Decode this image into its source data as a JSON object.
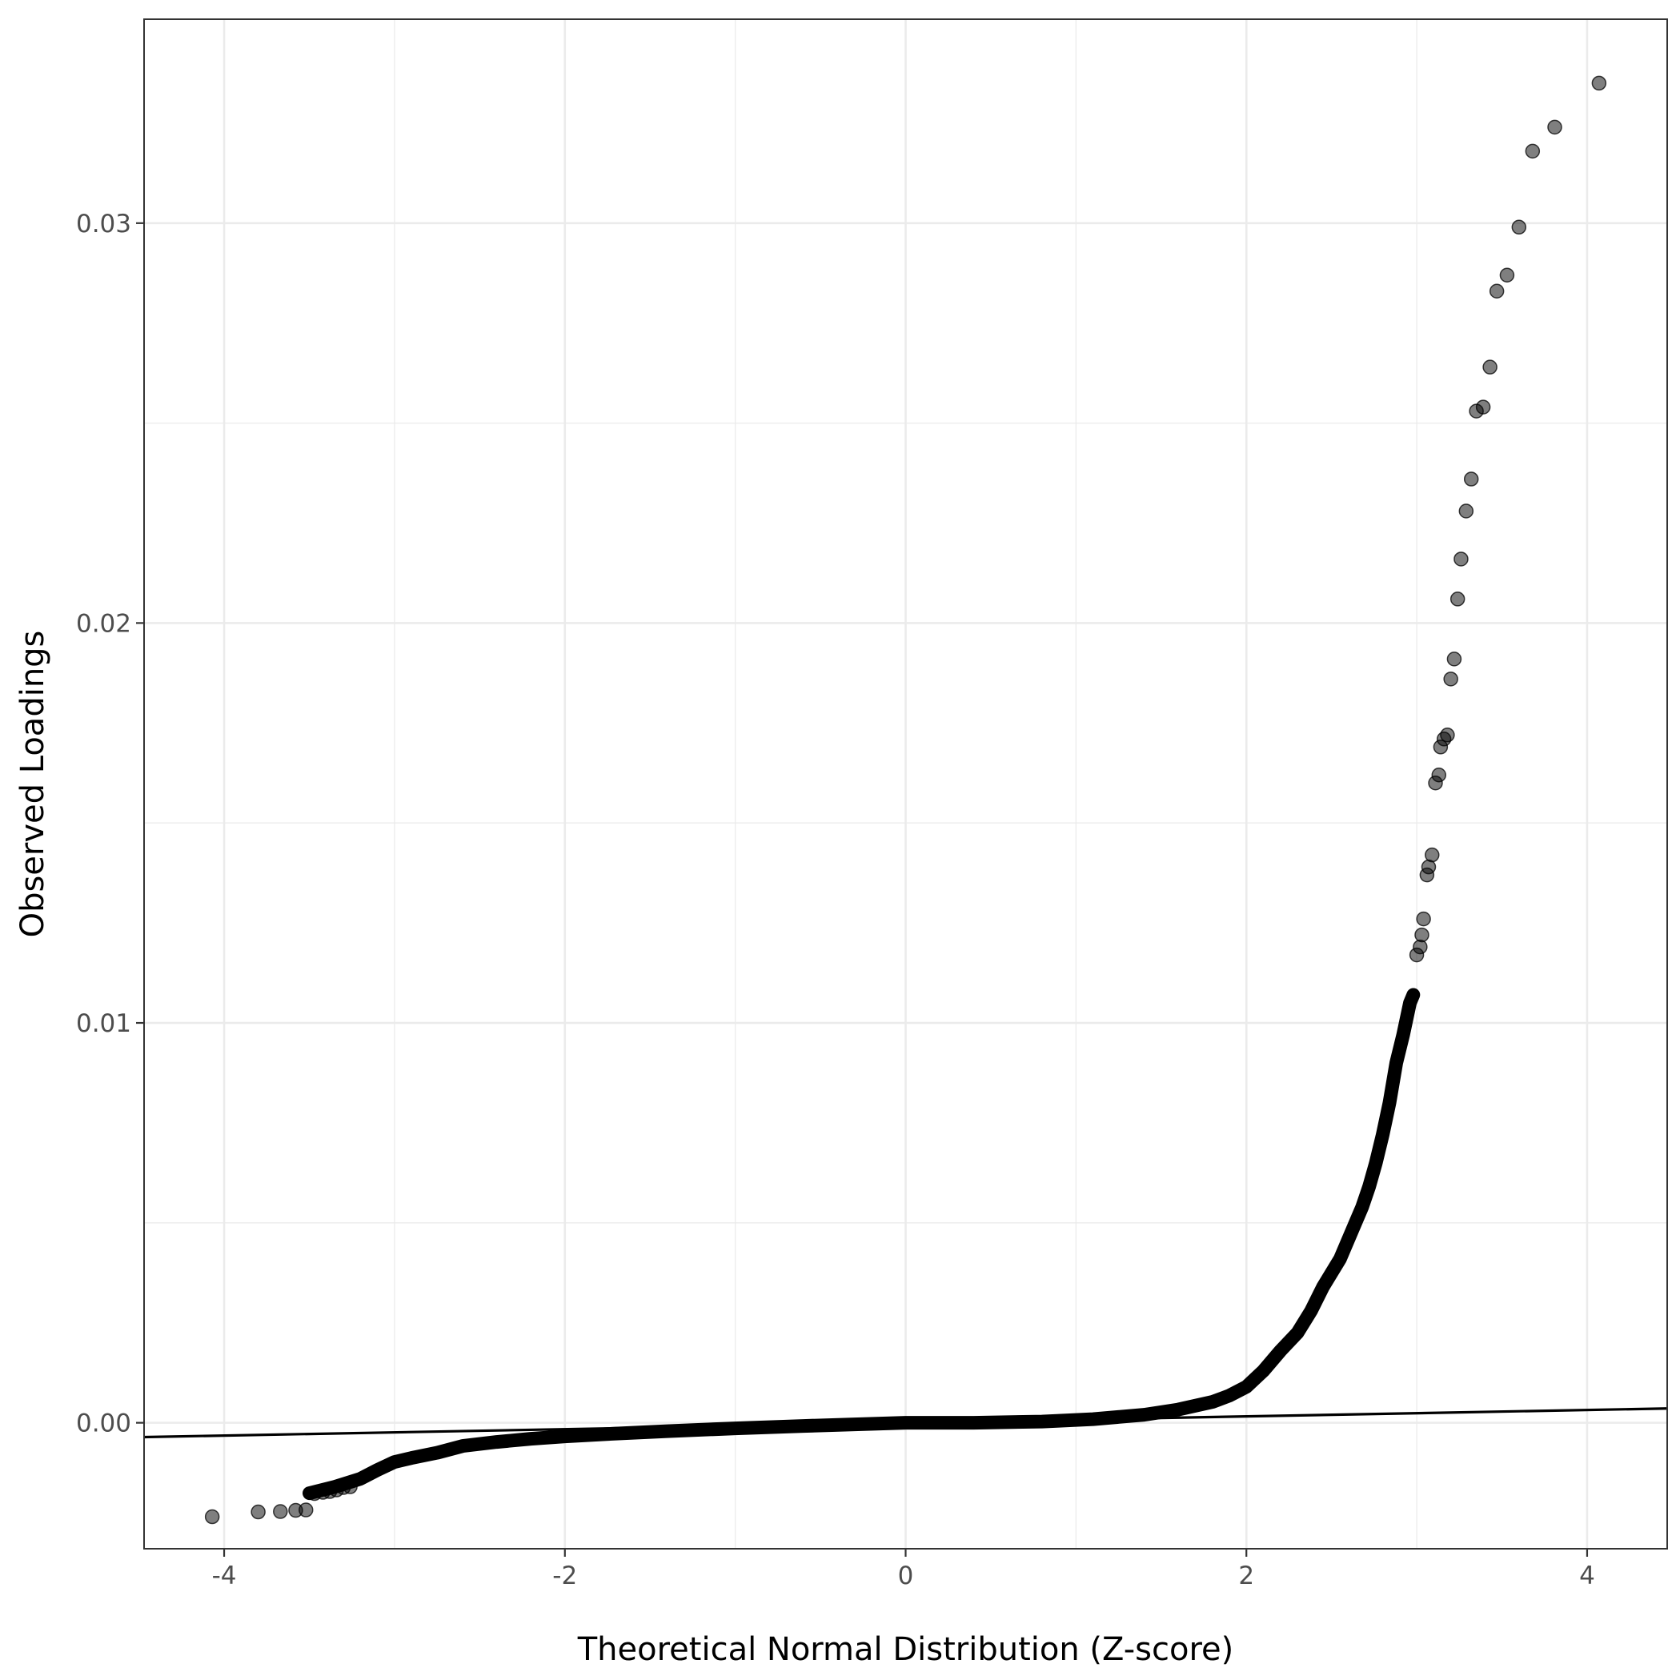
{
  "chart_data": {
    "type": "scatter",
    "title": "",
    "xlabel": "Theoretical Normal Distribution (Z-score)",
    "ylabel": "Observed Loadings",
    "xlim": [
      -4.47,
      4.47
    ],
    "ylim": [
      -0.00315,
      0.0351
    ],
    "x_ticks": [
      -4,
      -2,
      0,
      2,
      4
    ],
    "x_tick_labels": [
      "-4",
      "-2",
      "0",
      "2",
      "4"
    ],
    "y_ticks": [
      0,
      0.01,
      0.02,
      0.03
    ],
    "y_tick_labels": [
      "0.00",
      "0.01",
      "0.02",
      "0.03"
    ],
    "grid": true,
    "legend": "none",
    "point_color": "#000000",
    "point_alpha": 0.5,
    "reference_line": {
      "intercept": 0.0,
      "slope": 8e-05
    },
    "curve_points": [
      [
        -3.5,
        -0.00176
      ],
      [
        -3.35,
        -0.0016
      ],
      [
        -3.2,
        -0.0014
      ],
      [
        -3.1,
        -0.00118
      ],
      [
        -3.0,
        -0.00098
      ],
      [
        -2.9,
        -0.00088
      ],
      [
        -2.75,
        -0.00075
      ],
      [
        -2.6,
        -0.00058
      ],
      [
        -2.4,
        -0.00048
      ],
      [
        -2.2,
        -0.0004
      ],
      [
        -2.0,
        -0.00034
      ],
      [
        -1.7,
        -0.00027
      ],
      [
        -1.4,
        -0.00021
      ],
      [
        -1.0,
        -0.00014
      ],
      [
        -0.6,
        -8e-05
      ],
      [
        -0.3,
        -4e-05
      ],
      [
        0.0,
        0.0
      ],
      [
        0.4,
        0.0
      ],
      [
        0.8,
        3e-05
      ],
      [
        1.1,
        9e-05
      ],
      [
        1.4,
        0.0002
      ],
      [
        1.6,
        0.00033
      ],
      [
        1.8,
        0.00052
      ],
      [
        1.9,
        0.00068
      ],
      [
        2.0,
        0.0009
      ],
      [
        2.1,
        0.0013
      ],
      [
        2.2,
        0.0018
      ],
      [
        2.3,
        0.00225
      ],
      [
        2.38,
        0.0028
      ],
      [
        2.45,
        0.0034
      ],
      [
        2.55,
        0.0041
      ],
      [
        2.62,
        0.0048
      ],
      [
        2.68,
        0.0054
      ],
      [
        2.72,
        0.0059
      ],
      [
        2.76,
        0.0065
      ],
      [
        2.8,
        0.0072
      ],
      [
        2.84,
        0.008
      ],
      [
        2.88,
        0.009
      ],
      [
        2.92,
        0.0097
      ],
      [
        2.96,
        0.0105
      ],
      [
        2.98,
        0.0107
      ]
    ],
    "points": [
      [
        -4.07,
        -0.00235
      ],
      [
        -3.8,
        -0.00223
      ],
      [
        -3.67,
        -0.00222
      ],
      [
        -3.58,
        -0.00219
      ],
      [
        -3.52,
        -0.00218
      ],
      [
        -3.47,
        -0.00177
      ],
      [
        -3.42,
        -0.00174
      ],
      [
        -3.38,
        -0.00172
      ],
      [
        -3.34,
        -0.00168
      ],
      [
        -3.3,
        -0.00162
      ],
      [
        -3.26,
        -0.0016
      ],
      [
        3.0,
        0.0117
      ],
      [
        3.02,
        0.0119
      ],
      [
        3.03,
        0.0122
      ],
      [
        3.04,
        0.0126
      ],
      [
        3.06,
        0.0137
      ],
      [
        3.07,
        0.0139
      ],
      [
        3.09,
        0.0142
      ],
      [
        3.11,
        0.016
      ],
      [
        3.13,
        0.0162
      ],
      [
        3.14,
        0.0169
      ],
      [
        3.16,
        0.0171
      ],
      [
        3.18,
        0.0172
      ],
      [
        3.2,
        0.0186
      ],
      [
        3.22,
        0.0191
      ],
      [
        3.24,
        0.0206
      ],
      [
        3.26,
        0.0216
      ],
      [
        3.29,
        0.0228
      ],
      [
        3.32,
        0.0236
      ],
      [
        3.35,
        0.0253
      ],
      [
        3.39,
        0.0254
      ],
      [
        3.43,
        0.0264
      ],
      [
        3.47,
        0.0283
      ],
      [
        3.53,
        0.0287
      ],
      [
        3.6,
        0.0299
      ],
      [
        3.68,
        0.0318
      ],
      [
        3.81,
        0.0324
      ],
      [
        4.07,
        0.0335
      ]
    ]
  }
}
